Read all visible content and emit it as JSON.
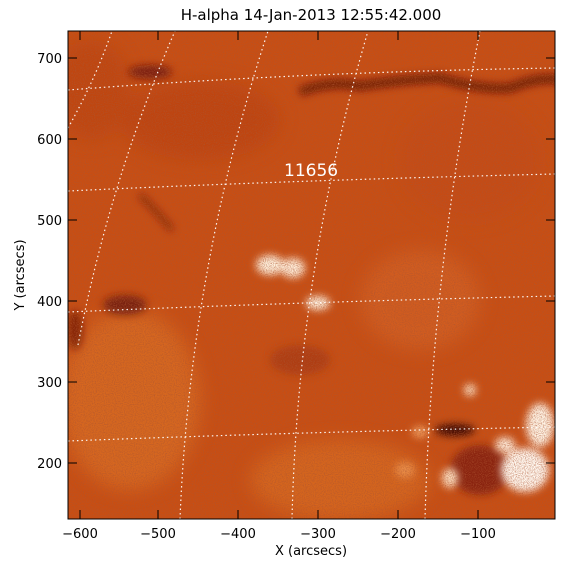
{
  "figure": {
    "title": "H-alpha 14-Jan-2013 12:55:42.000",
    "xlabel": "X (arcsecs)",
    "ylabel": "Y (arcsecs)",
    "active_region_label": "11656",
    "colormap": {
      "dark": "#6a1608",
      "mid": "#c94e12",
      "light": "#e27c2a",
      "bright": "#fff6ea"
    }
  },
  "axes": {
    "x": {
      "range": [
        -615,
        -5
      ],
      "ticks": [
        -600,
        -500,
        -400,
        -300,
        -200,
        -100
      ],
      "tick_labels": [
        "−600",
        "−500",
        "−400",
        "−300",
        "−200",
        "−100"
      ]
    },
    "y": {
      "range": [
        130,
        735
      ],
      "ticks": [
        200,
        300,
        400,
        500,
        600,
        700
      ],
      "tick_labels": [
        "200",
        "300",
        "400",
        "500",
        "600",
        "700"
      ]
    }
  },
  "grid": {
    "visible": true,
    "style": "dotted",
    "color": "#ffffff"
  }
}
